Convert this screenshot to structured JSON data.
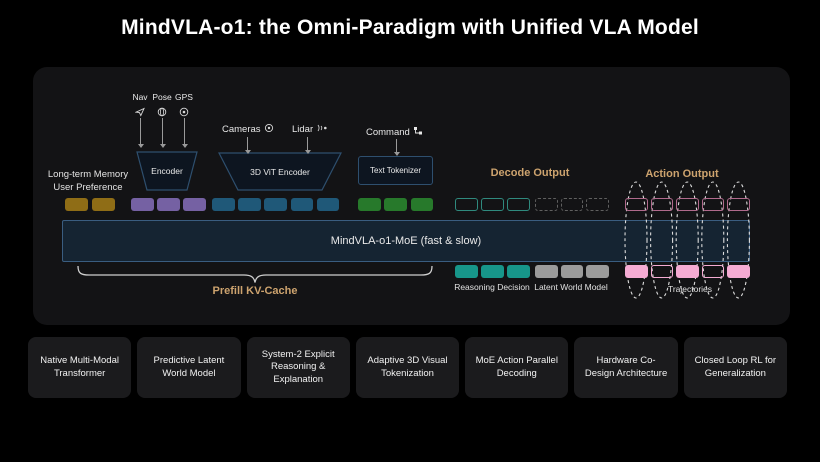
{
  "title": "MindVLA-o1: the Omni-Paradigm with Unified VLA Model",
  "colors": {
    "background": "#000000",
    "panel": "#131315",
    "accent_tan": "#cda36e",
    "moe_fill": "#152432",
    "moe_border": "#3a5d80",
    "encoder_border": "#2e4f6e"
  },
  "diagram": {
    "inputs": {
      "memory": {
        "line1": "Long-term Memory",
        "line2": "User Preference"
      },
      "sensors": [
        {
          "label": "Nav",
          "icon": "nav-icon"
        },
        {
          "label": "Pose",
          "icon": "pose-icon"
        },
        {
          "label": "GPS",
          "icon": "gps-icon"
        }
      ],
      "encoder_label": "Encoder",
      "cameras_label": "Cameras",
      "cameras_icon": "camera-icon",
      "lidar_label": "Lidar",
      "lidar_icon": "lidar-icon",
      "vit_label": "3D ViT Encoder",
      "command_label": "Command",
      "command_icon": "command-icon",
      "tokenizer_label": "Text Tokenizer"
    },
    "decode_output_label": "Decode Output",
    "action_output_label": "Action Output",
    "moe_label": "MindVLA-o1-MoE (fast & slow)",
    "prefill_label": "Prefill KV-Cache",
    "bottom_labels": {
      "reasoning": "Reasoning Decision",
      "latent": "Latent World Model",
      "trajectories": "Trajectories"
    },
    "token_groups_top": [
      {
        "name": "memory-token",
        "count": 2,
        "color": "#8f6d16",
        "style": "filled"
      },
      {
        "name": "pose-token",
        "count": 3,
        "color": "#7561a3",
        "style": "filled"
      },
      {
        "name": "vision-token",
        "count": 5,
        "color": "#1f5878",
        "style": "filled"
      },
      {
        "name": "text-token",
        "count": 3,
        "color": "#27792b",
        "style": "filled"
      },
      {
        "name": "decode-output-token",
        "count": 3,
        "color": "#2f8a7e",
        "style": "outline"
      },
      {
        "name": "latent-placeholder-token",
        "count": 3,
        "color": "#606060",
        "style": "dashed"
      },
      {
        "name": "action-output-token",
        "count": 5,
        "color": "#b06a8c",
        "style": "outline"
      }
    ],
    "token_groups_bottom": [
      {
        "name": "reasoning-decision-token",
        "count": 3,
        "color": "#17968a",
        "style": "filled"
      },
      {
        "name": "latent-world-model-token",
        "count": 3,
        "color": "#9b9b9b",
        "style": "filled"
      },
      {
        "name": "trajectory-token",
        "count": 5,
        "color": "#f5abd3",
        "style": [
          "filled",
          "outline",
          "filled",
          "outline",
          "filled"
        ]
      }
    ]
  },
  "features": {
    "items": [
      {
        "label": "Native Multi-Modal Transformer"
      },
      {
        "label": "Predictive Latent World Model"
      },
      {
        "label": "System-2 Explicit Reasoning & Explanation"
      },
      {
        "label": "Adaptive 3D Visual Tokenization"
      },
      {
        "label": "MoE Action Parallel Decoding"
      },
      {
        "label": "Hardware Co-Design Architecture"
      },
      {
        "label": "Closed Loop RL for Generalization"
      }
    ]
  }
}
